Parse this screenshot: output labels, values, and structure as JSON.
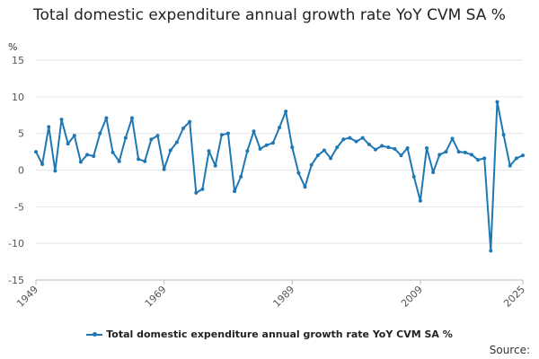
{
  "chart_data": {
    "type": "line",
    "title": "Total domestic expenditure annual growth rate YoY CVM SA %",
    "ylabel": "%",
    "xlabel": "",
    "xlim": [
      1949,
      2025
    ],
    "ylim": [
      -15,
      15
    ],
    "yticks": [
      15,
      10,
      5,
      0,
      -5,
      -10,
      -15
    ],
    "ytick_labels": [
      "15",
      "10",
      "5",
      "0",
      "-5",
      "-10",
      "-15"
    ],
    "xticks": [
      1949,
      1969,
      1989,
      2009,
      2025
    ],
    "xtick_labels": [
      "1949",
      "1969",
      "1989",
      "2009",
      "2025"
    ],
    "grid": "horizontal",
    "legend_position": "bottom",
    "color": "#1f77b4",
    "series": [
      {
        "name": "Total domestic expenditure annual growth rate YoY CVM SA %",
        "x": [
          1949,
          1950,
          1951,
          1952,
          1953,
          1954,
          1955,
          1956,
          1957,
          1958,
          1959,
          1960,
          1961,
          1962,
          1963,
          1964,
          1965,
          1966,
          1967,
          1968,
          1969,
          1970,
          1971,
          1972,
          1973,
          1974,
          1975,
          1976,
          1977,
          1978,
          1979,
          1980,
          1981,
          1982,
          1983,
          1984,
          1985,
          1986,
          1987,
          1988,
          1989,
          1990,
          1991,
          1992,
          1993,
          1994,
          1995,
          1996,
          1997,
          1998,
          1999,
          2000,
          2001,
          2002,
          2003,
          2004,
          2005,
          2006,
          2007,
          2008,
          2009,
          2010,
          2011,
          2012,
          2013,
          2014,
          2015,
          2016,
          2017,
          2018,
          2019,
          2020,
          2021,
          2022,
          2023,
          2024,
          2025
        ],
        "values": [
          2.5,
          0.8,
          5.9,
          -0.1,
          6.9,
          3.6,
          4.7,
          1.1,
          2.1,
          1.9,
          5.0,
          7.1,
          2.4,
          1.2,
          4.4,
          7.1,
          1.5,
          1.2,
          4.2,
          4.7,
          0.1,
          2.7,
          3.8,
          5.7,
          6.6,
          -3.1,
          -2.6,
          2.6,
          0.6,
          4.8,
          5.0,
          -2.9,
          -0.9,
          2.6,
          5.3,
          2.9,
          3.4,
          3.7,
          5.8,
          8.0,
          3.1,
          -0.4,
          -2.3,
          0.7,
          2.0,
          2.7,
          1.6,
          3.1,
          4.2,
          4.4,
          3.9,
          4.4,
          3.5,
          2.8,
          3.3,
          3.1,
          2.9,
          2.0,
          3.0,
          -0.9,
          -4.2,
          3.0,
          -0.3,
          2.1,
          2.5,
          4.3,
          2.5,
          2.4,
          2.1,
          1.4,
          1.6,
          -11.0,
          9.3,
          4.8,
          0.6,
          1.6,
          2.0
        ]
      }
    ]
  },
  "legend_label": "Total domestic expenditure annual growth rate YoY CVM SA %",
  "source_label": "Source:"
}
